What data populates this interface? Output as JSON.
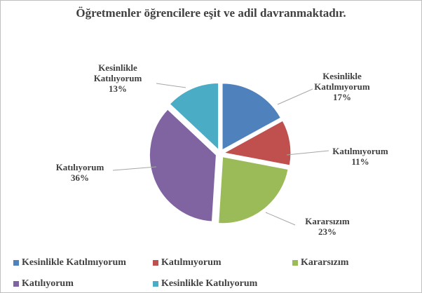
{
  "chart_data": {
    "type": "pie",
    "title": "Öğretmenler öğrencilere eşit ve adil davranmaktadır.",
    "categories": [
      "Kesinlikle Katılmıyorum",
      "Katılmıyorum",
      "Kararsızım",
      "Katılıyorum",
      "Kesinlikle Katılıyorum"
    ],
    "values": [
      17,
      11,
      23,
      36,
      13
    ],
    "value_labels": [
      "17%",
      "11%",
      "23%",
      "36%",
      "13%"
    ],
    "colors": [
      "#4f81bd",
      "#c0504d",
      "#9bbb59",
      "#8064a2",
      "#4bacc6"
    ],
    "legend": "bottom"
  }
}
